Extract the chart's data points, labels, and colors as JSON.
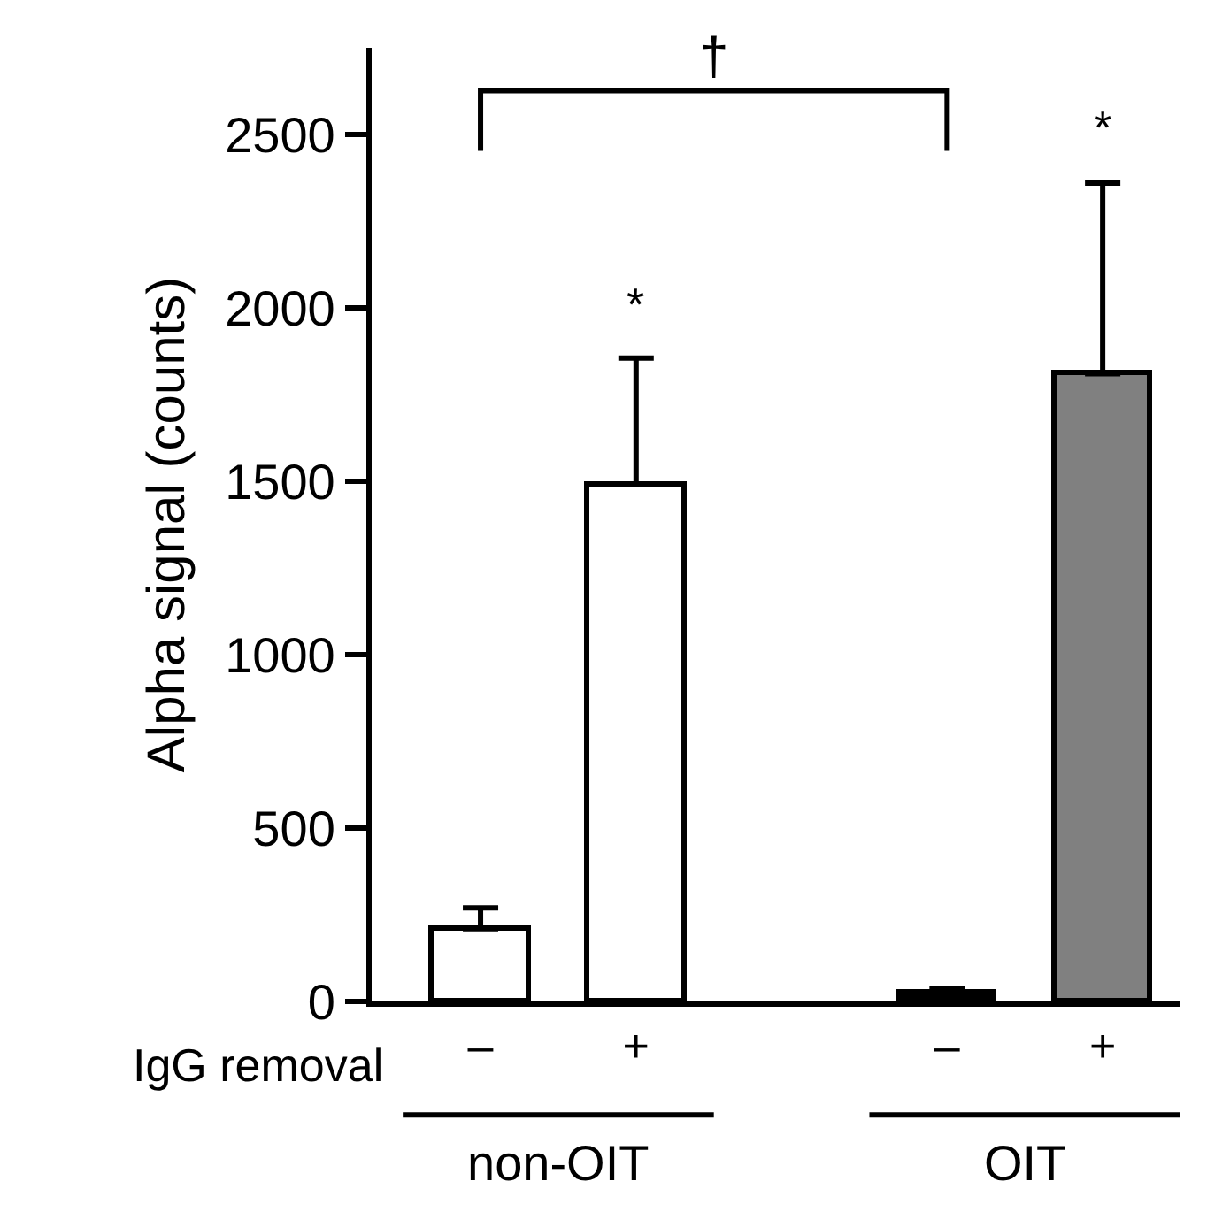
{
  "chart_data": {
    "type": "bar",
    "ylabel": "Alpha signal (counts)",
    "xlabel": "IgG removal",
    "categories": [
      "–",
      "+",
      null,
      "–",
      "+"
    ],
    "values": [
      210,
      1490,
      null,
      25,
      1810
    ],
    "errors": [
      [
        210,
        270
      ],
      [
        1490,
        1855
      ],
      null,
      [
        25,
        38
      ],
      [
        1810,
        2360
      ]
    ],
    "colors": [
      "#ffffff",
      "#ffffff",
      null,
      "#000000",
      "#808080"
    ],
    "ylim": [
      0,
      2750
    ],
    "yticks": [
      0,
      500,
      1000,
      1500,
      2000,
      2500
    ],
    "grid": false,
    "annotations": [
      "*",
      "*",
      "†",
      "non-OIT",
      "OIT"
    ]
  }
}
